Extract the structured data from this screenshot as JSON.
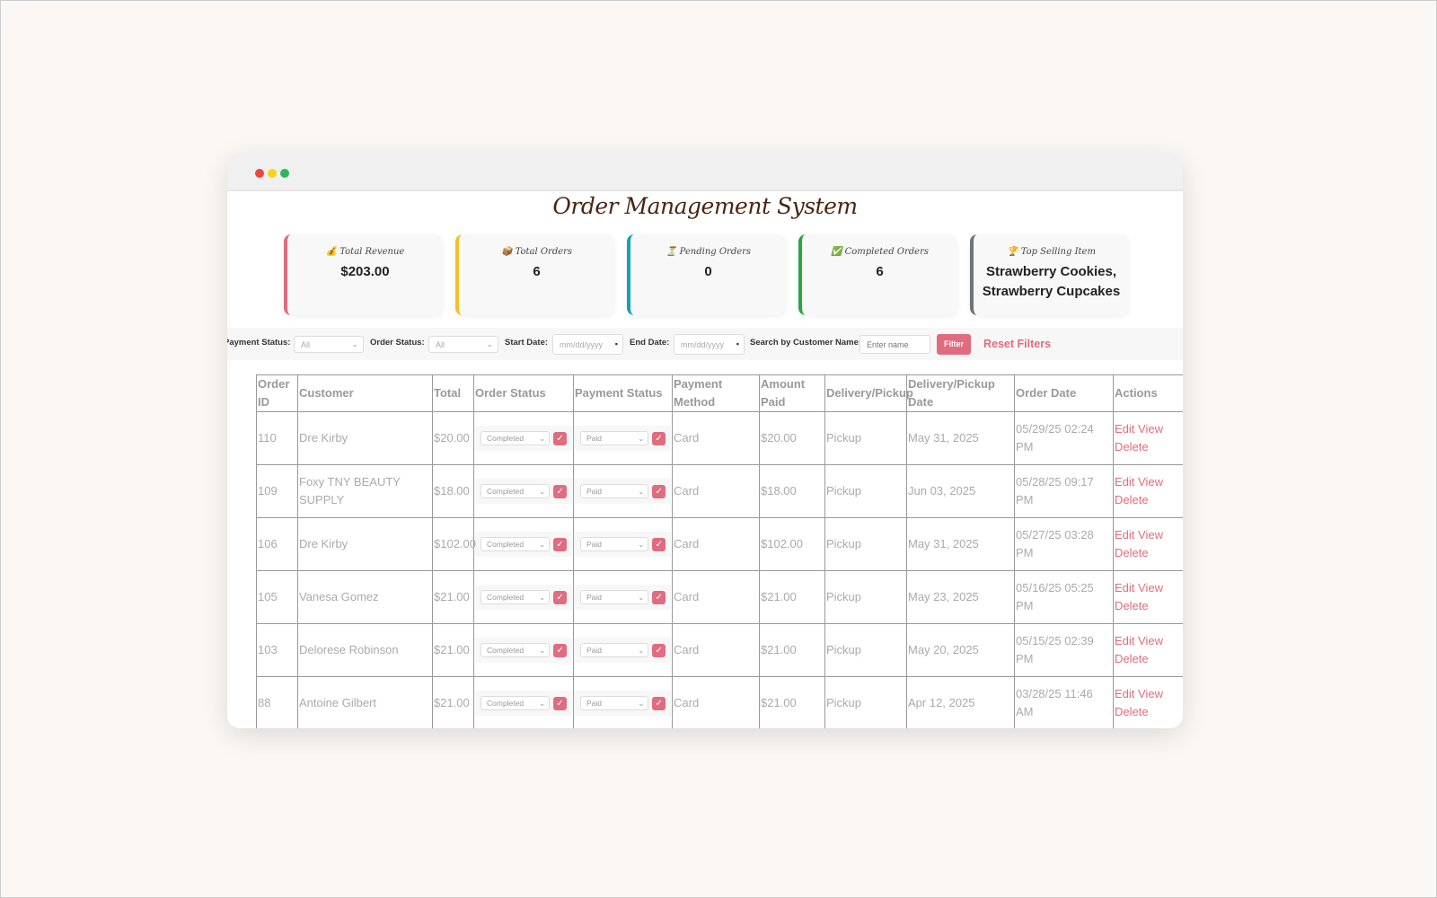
{
  "window": {
    "title": "Order Management System",
    "controls": {
      "close": "#ee4444",
      "minimize": "#f5d514",
      "maximize": "#2db563"
    }
  },
  "stats": [
    {
      "icon": "money-bag-icon",
      "glyph": "💰",
      "label": "Total Revenue",
      "value": "$203.00",
      "color": "#e06c7f"
    },
    {
      "icon": "package-icon",
      "glyph": "📦",
      "label": "Total Orders",
      "value": "6",
      "color": "#f5c02c"
    },
    {
      "icon": "hourglass-icon",
      "glyph": "⏳",
      "label": "Pending Orders",
      "value": "0",
      "color": "#17a2b8"
    },
    {
      "icon": "check-icon",
      "glyph": "✅",
      "label": "Completed Orders",
      "value": "6",
      "color": "#28a745"
    },
    {
      "icon": "trophy-icon",
      "glyph": "🏆",
      "label": "Top Selling Item",
      "value": "Strawberry Cookies, Strawberry Cupcakes",
      "color": "#6c757d"
    }
  ],
  "filters": {
    "payment_status_label": "Payment Status:",
    "payment_status_value": "All",
    "order_status_label": "Order Status:",
    "order_status_value": "All",
    "start_date_label": "Start Date:",
    "start_date_placeholder": "mm/dd/yyyy",
    "end_date_label": "End Date:",
    "end_date_placeholder": "mm/dd/yyyy",
    "search_label": "Search by Customer Name:",
    "search_placeholder": "Enter name",
    "filter_button": "Filter",
    "reset_button": "Reset Filters"
  },
  "table": {
    "headers": [
      "Order ID",
      "Customer",
      "Total",
      "Order Status",
      "Payment Status",
      "Payment Method",
      "Amount Paid",
      "Delivery/Pickup",
      "Delivery/Pickup Date",
      "Order Date",
      "Actions"
    ],
    "actions": {
      "edit": "Edit",
      "view": "View",
      "delete": "Delete"
    },
    "rows": [
      {
        "id": "110",
        "customer": "Dre Kirby",
        "total": "$20.00",
        "order_status": "Completed",
        "payment_status": "Paid",
        "method": "Card",
        "paid": "$20.00",
        "delivery": "Pickup",
        "delivery_date": "May 31, 2025",
        "order_date": "05/29/25 02:24 PM"
      },
      {
        "id": "109",
        "customer": "Foxy TNY BEAUTY SUPPLY",
        "total": "$18.00",
        "order_status": "Completed",
        "payment_status": "Paid",
        "method": "Card",
        "paid": "$18.00",
        "delivery": "Pickup",
        "delivery_date": "Jun 03, 2025",
        "order_date": "05/28/25 09:17 PM"
      },
      {
        "id": "106",
        "customer": "Dre Kirby",
        "total": "$102.00",
        "order_status": "Completed",
        "payment_status": "Paid",
        "method": "Card",
        "paid": "$102.00",
        "delivery": "Pickup",
        "delivery_date": "May 31, 2025",
        "order_date": "05/27/25 03:28 PM"
      },
      {
        "id": "105",
        "customer": "Vanesa Gomez",
        "total": "$21.00",
        "order_status": "Completed",
        "payment_status": "Paid",
        "method": "Card",
        "paid": "$21.00",
        "delivery": "Pickup",
        "delivery_date": "May 23, 2025",
        "order_date": "05/16/25 05:25 PM"
      },
      {
        "id": "103",
        "customer": "Delorese Robinson",
        "total": "$21.00",
        "order_status": "Completed",
        "payment_status": "Paid",
        "method": "Card",
        "paid": "$21.00",
        "delivery": "Pickup",
        "delivery_date": "May 20, 2025",
        "order_date": "05/15/25 02:39 PM"
      },
      {
        "id": "88",
        "customer": "Antoine Gilbert",
        "total": "$21.00",
        "order_status": "Completed",
        "payment_status": "Paid",
        "method": "Card",
        "paid": "$21.00",
        "delivery": "Pickup",
        "delivery_date": "Apr 12, 2025",
        "order_date": "03/28/25 11:46 AM"
      }
    ]
  }
}
